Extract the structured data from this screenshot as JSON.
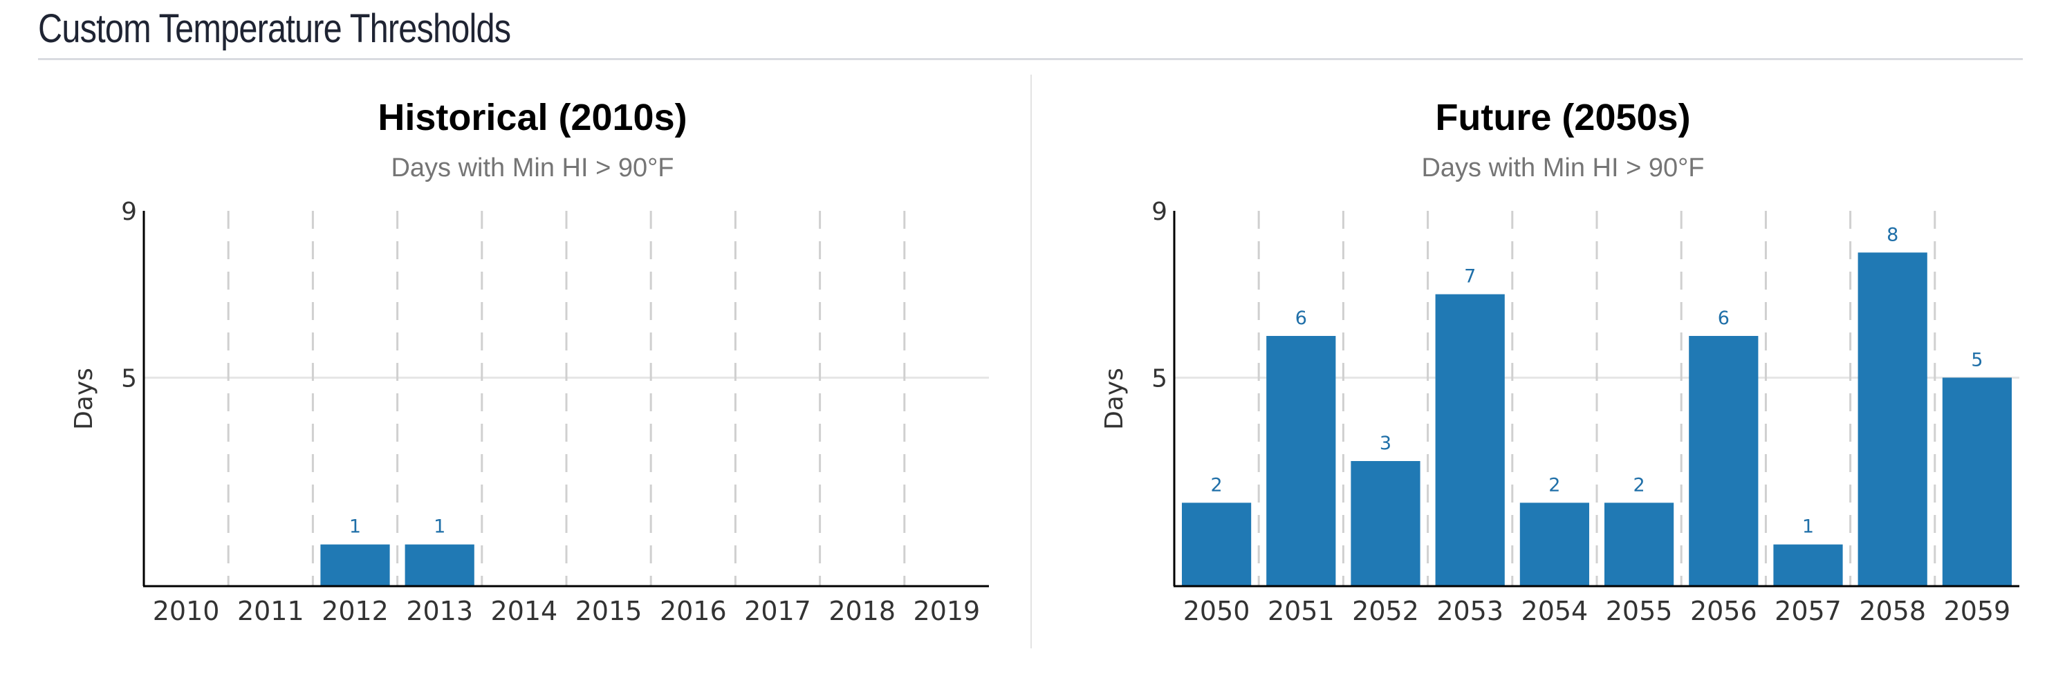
{
  "page": {
    "title": "Custom Temperature Thresholds"
  },
  "colors": {
    "bar": "#2079b4",
    "label": "#1f6fa8"
  },
  "chart_data": [
    {
      "type": "bar",
      "title": "Historical (2010s)",
      "subtitle": "Days with Min HI > 90°F",
      "xlabel": "",
      "ylabel": "Days",
      "categories": [
        "2010",
        "2011",
        "2012",
        "2013",
        "2014",
        "2015",
        "2016",
        "2017",
        "2018",
        "2019"
      ],
      "values": [
        0,
        0,
        1,
        1,
        0,
        0,
        0,
        0,
        0,
        0
      ],
      "yticks": [
        5,
        9
      ],
      "ylim": [
        0,
        9
      ],
      "grid": "dashed vertical between categories, solid horizontal at 5",
      "legend": "none"
    },
    {
      "type": "bar",
      "title": "Future (2050s)",
      "subtitle": "Days with Min HI > 90°F",
      "xlabel": "",
      "ylabel": "Days",
      "categories": [
        "2050",
        "2051",
        "2052",
        "2053",
        "2054",
        "2055",
        "2056",
        "2057",
        "2058",
        "2059"
      ],
      "values": [
        2,
        6,
        3,
        7,
        2,
        2,
        6,
        1,
        8,
        5
      ],
      "yticks": [
        5,
        9
      ],
      "ylim": [
        0,
        9
      ],
      "grid": "dashed vertical between categories, solid horizontal at 5",
      "legend": "none"
    }
  ]
}
